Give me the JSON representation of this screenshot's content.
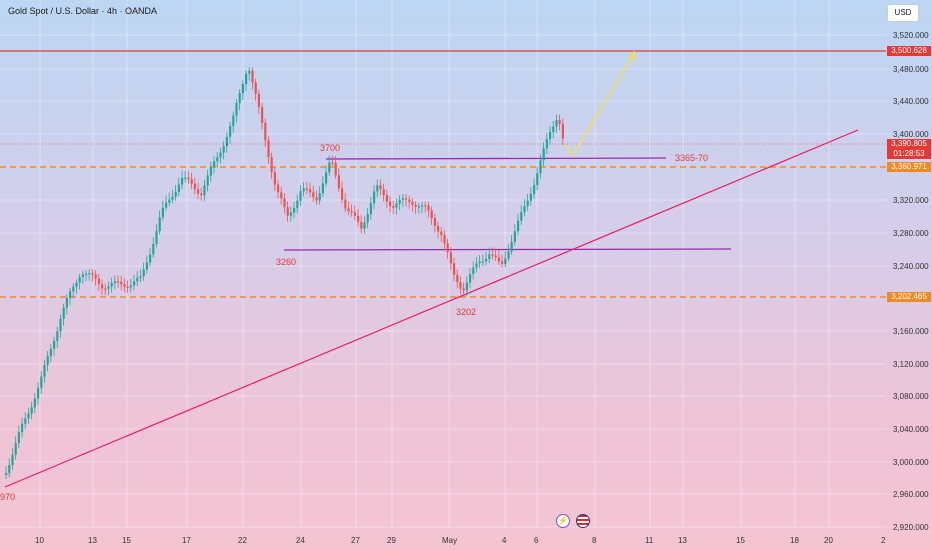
{
  "header": {
    "title": "Gold Spot / U.S. Dollar · 4h · OANDA",
    "currency_button": "USD"
  },
  "price_axis": {
    "ticks": [
      "3,520.000",
      "3,480.000",
      "3,440.000",
      "3,400.000",
      "3,320.000",
      "3,280.000",
      "3,240.000",
      "3,160.000",
      "3,120.000",
      "3,080.000",
      "3,040.000",
      "3,000.000",
      "2,960.000",
      "2,920.000"
    ],
    "tags": {
      "resistance": "3,500.628",
      "current_price": "3,390.805",
      "countdown": "01:28:53",
      "level_mid": "3,360.971",
      "level_low": "3,202.465"
    }
  },
  "time_axis": {
    "labels": [
      "10",
      "13",
      "15",
      "17",
      "22",
      "24",
      "27",
      "29",
      "May",
      "4",
      "6",
      "8",
      "11",
      "13",
      "15",
      "18",
      "20",
      "2"
    ]
  },
  "annotations": {
    "level_3700": "3700",
    "level_3260": "3260",
    "level_3202": "3202",
    "zone_3365_70": "3365-70",
    "low_2970": "970"
  },
  "colors": {
    "up": "#26a69a",
    "down": "#ef5350",
    "resistance_line": "#e53935",
    "dashed_level": "#f08a24",
    "purple_line": "#9c27b0",
    "trendline": "#e91e63",
    "projection": "#f2e050",
    "tag_red": "#e53935",
    "tag_orange": "#f08a24"
  },
  "icons": [
    "lightning-icon",
    "us-flag-icon"
  ]
}
